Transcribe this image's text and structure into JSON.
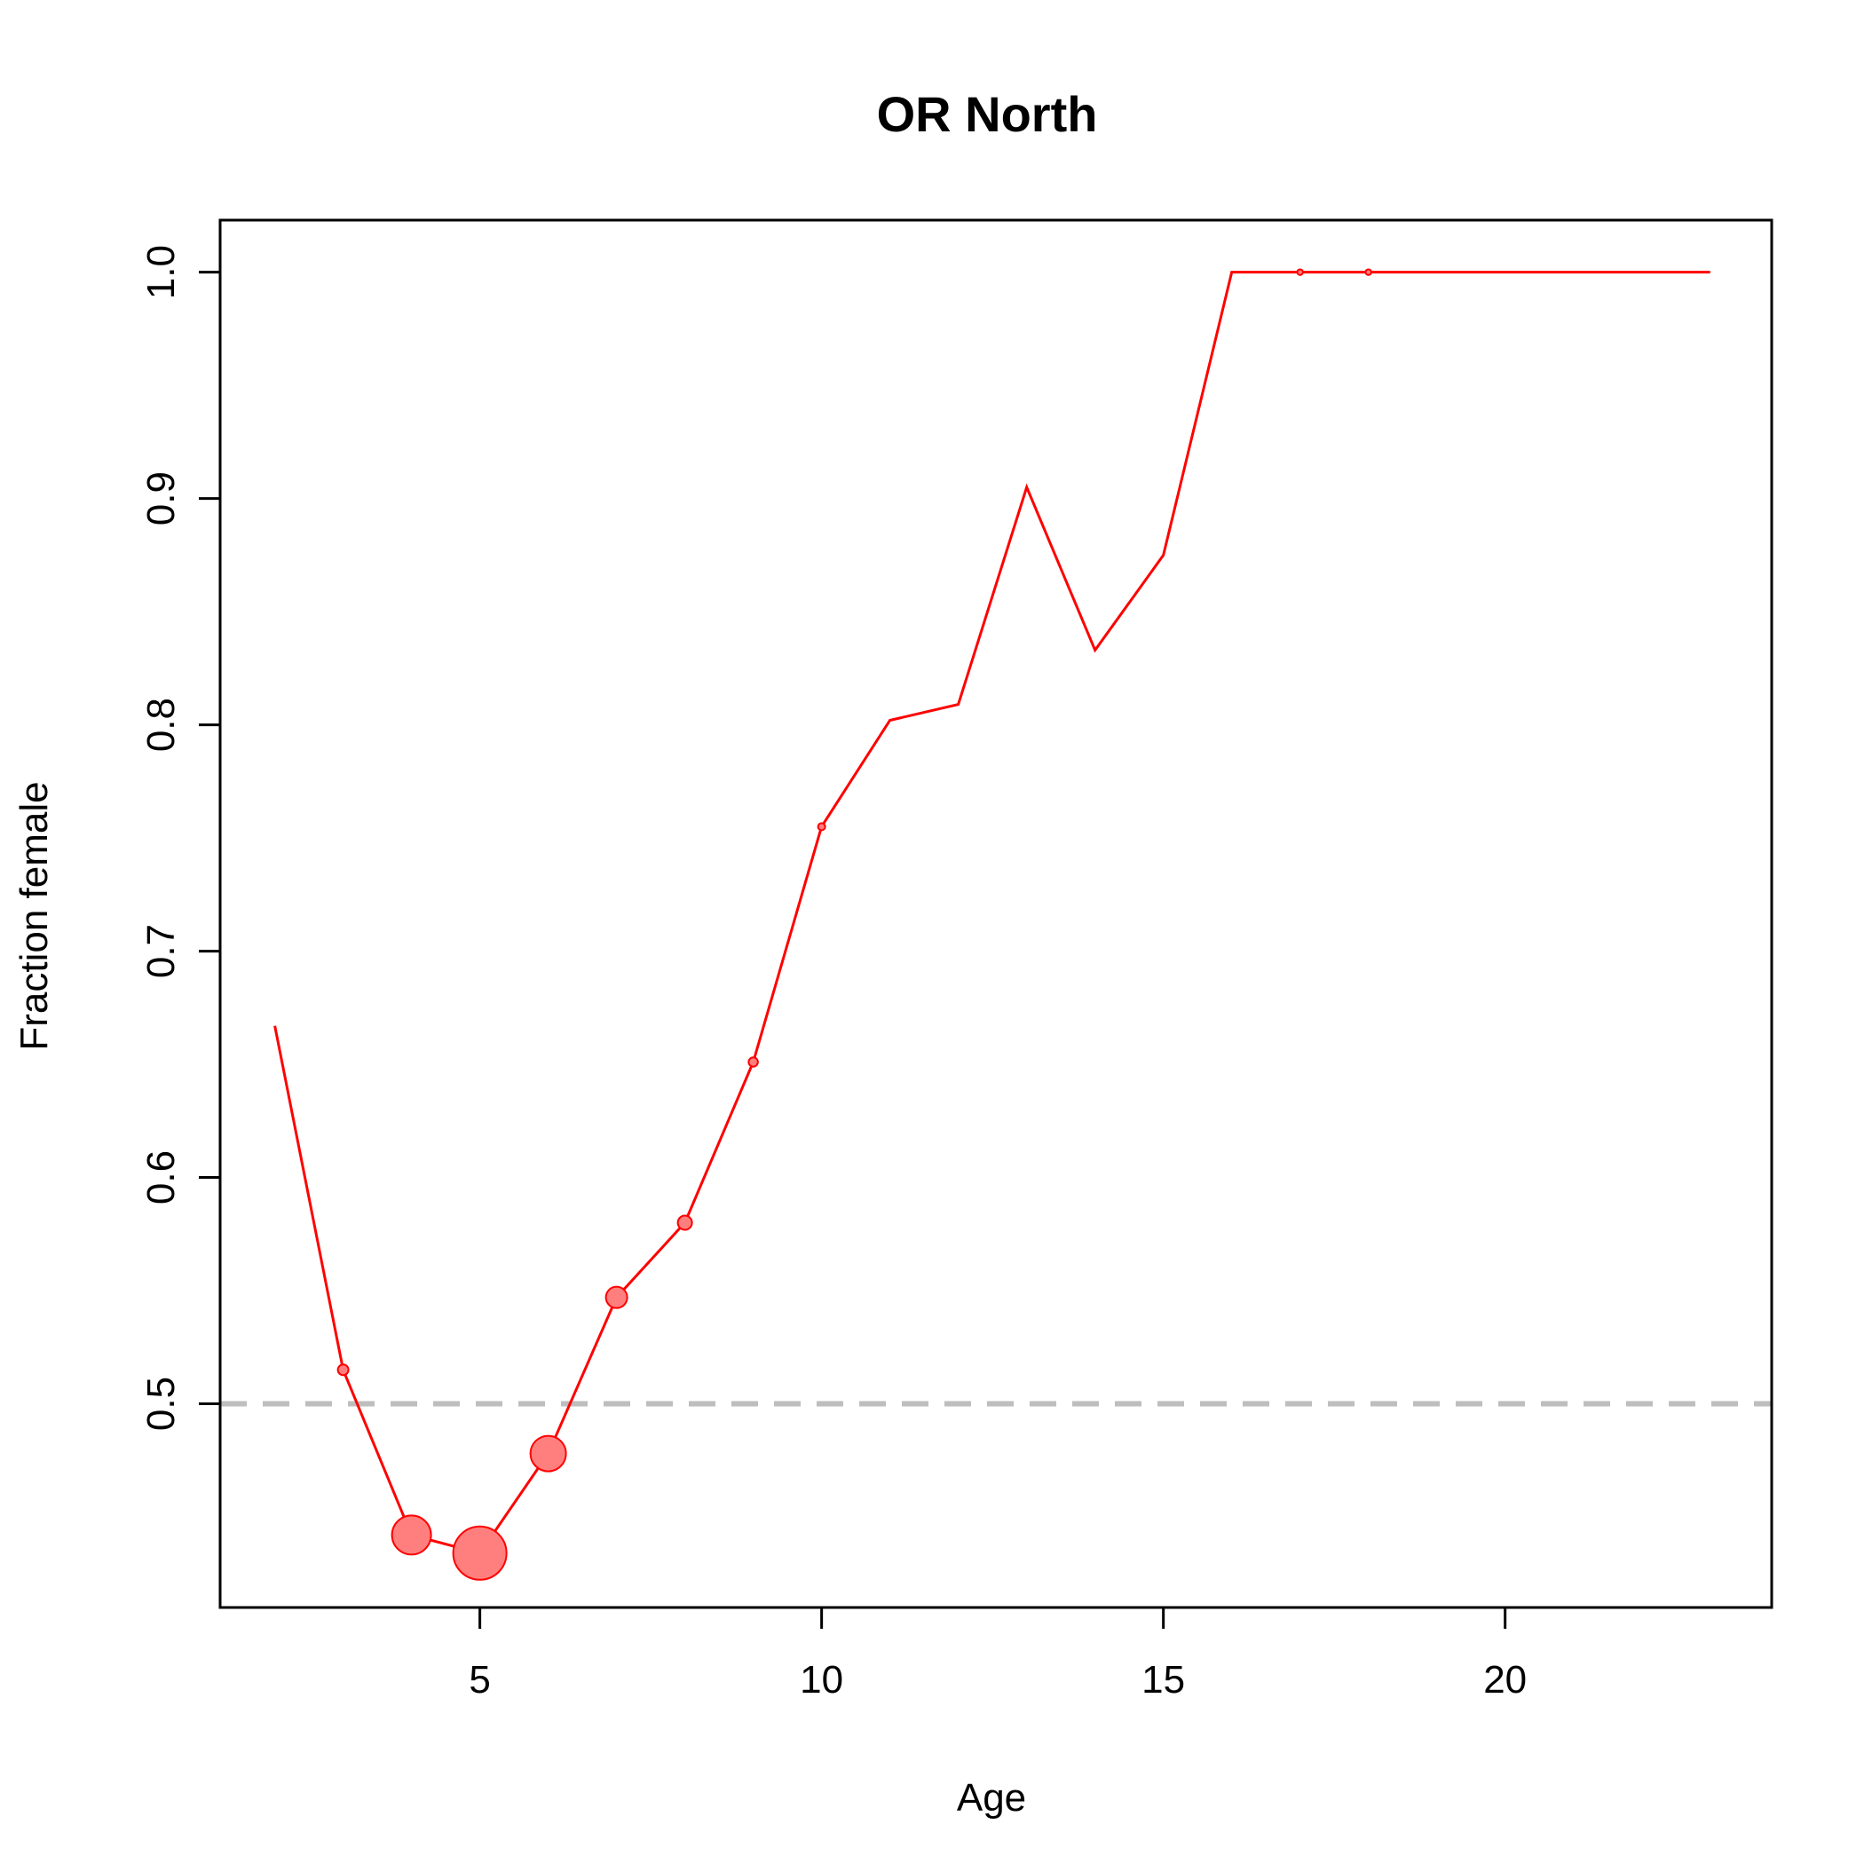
{
  "chart_data": {
    "type": "line",
    "title": "OR North",
    "xlabel": "Age",
    "ylabel": "Fraction female",
    "xlim": [
      1.2,
      23.9
    ],
    "ylim": [
      0.41,
      1.023
    ],
    "x_ticks": [
      5,
      10,
      15,
      20
    ],
    "y_ticks": [
      0.5,
      0.6,
      0.7,
      0.8,
      0.9,
      1.0
    ],
    "x_tick_labels": [
      "5",
      "10",
      "15",
      "20"
    ],
    "y_tick_labels": [
      "0.5",
      "0.6",
      "0.7",
      "0.8",
      "0.9",
      "1.0"
    ],
    "reference_line": {
      "y": 0.5,
      "style": "dashed",
      "color": "#bebebe"
    },
    "grid": false,
    "series": [
      {
        "color": "#ff0000",
        "marker_fill": "#ff7f7f",
        "x": [
          2,
          3,
          4,
          5,
          6,
          7,
          8,
          9,
          10,
          11,
          12,
          13,
          14,
          15,
          16,
          17,
          18,
          19,
          20,
          21,
          22,
          23
        ],
        "y": [
          0.667,
          0.515,
          0.442,
          0.434,
          0.478,
          0.547,
          0.58,
          0.651,
          0.755,
          0.802,
          0.809,
          0.905,
          0.833,
          0.875,
          1.0,
          1.0,
          1.0,
          1.0,
          1.0,
          1.0,
          1.0,
          1.0
        ],
        "marker_size": [
          0,
          1,
          5,
          7,
          4.5,
          2.5,
          1.5,
          0.8,
          0.5,
          0,
          0,
          0,
          0,
          0,
          0,
          0.3,
          0.3,
          0,
          0,
          0,
          0,
          0
        ]
      }
    ]
  }
}
